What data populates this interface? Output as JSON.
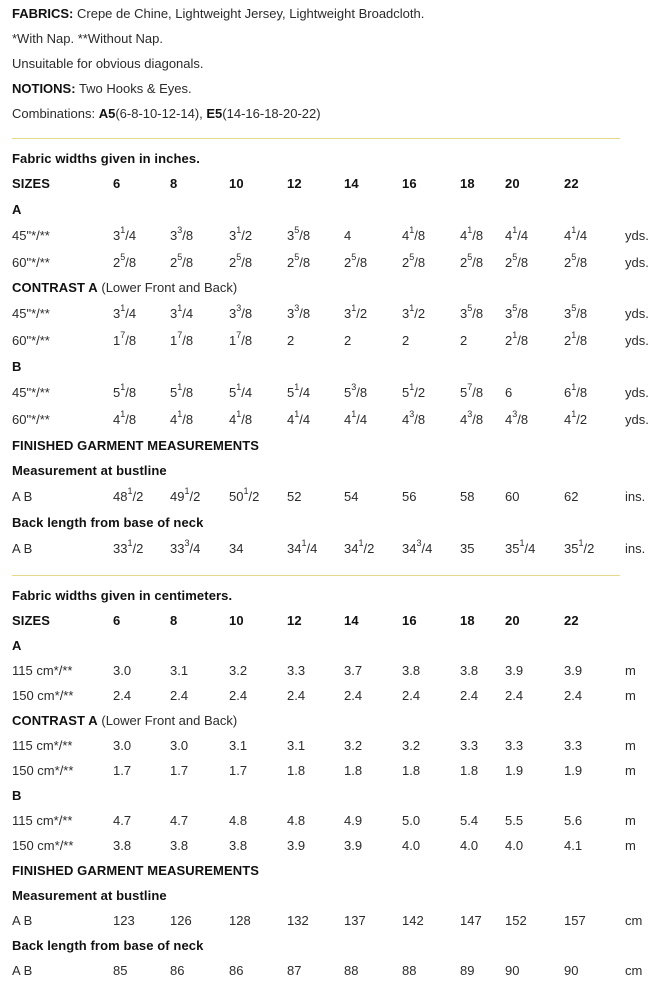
{
  "intro": {
    "fabrics_label": "FABRICS:",
    "fabrics_text": " Crepe de Chine, Lightweight Jersey, Lightweight Broadcloth.",
    "nap_text": "*With Nap. **Without Nap.",
    "diagonals_text": "Unsuitable for obvious diagonals.",
    "notions_label": "NOTIONS:",
    "notions_text": " Two Hooks & Eyes.",
    "combinations_label": "Combinations: ",
    "combo1_code": "A5",
    "combo1_sizes": "(6-8-10-12-14), ",
    "combo2_code": "E5",
    "combo2_sizes": "(14-16-18-20-22)"
  },
  "inches": {
    "caption": "Fabric widths given in inches.",
    "sizes_label": "SIZES",
    "sizes": [
      "6",
      "8",
      "10",
      "12",
      "14",
      "16",
      "18",
      "20",
      "22"
    ],
    "view_a_label": "A",
    "a_45": {
      "label": "45\"*/**",
      "values": [
        "3|1/4",
        "3|3/8",
        "3|1/2",
        "3|5/8",
        "4",
        "4|1/8",
        "4|1/8",
        "4|1/4",
        "4|1/4"
      ],
      "unit": "yds."
    },
    "a_60": {
      "label": "60\"*/**",
      "values": [
        "2|5/8",
        "2|5/8",
        "2|5/8",
        "2|5/8",
        "2|5/8",
        "2|5/8",
        "2|5/8",
        "2|5/8",
        "2|5/8"
      ],
      "unit": "yds."
    },
    "contrast_label": "CONTRAST A",
    "contrast_note": " (Lower Front and Back)",
    "c_45": {
      "label": "45\"*/**",
      "values": [
        "3|1/4",
        "3|1/4",
        "3|3/8",
        "3|3/8",
        "3|1/2",
        "3|1/2",
        "3|5/8",
        "3|5/8",
        "3|5/8"
      ],
      "unit": "yds."
    },
    "c_60": {
      "label": "60\"*/**",
      "values": [
        "1|7/8",
        "1|7/8",
        "1|7/8",
        "2",
        "2",
        "2",
        "2",
        "2|1/8",
        "2|1/8"
      ],
      "unit": "yds."
    },
    "view_b_label": "B",
    "b_45": {
      "label": "45\"*/**",
      "values": [
        "5|1/8",
        "5|1/8",
        "5|1/4",
        "5|1/4",
        "5|3/8",
        "5|1/2",
        "5|7/8",
        "6",
        "6|1/8"
      ],
      "unit": "yds."
    },
    "b_60": {
      "label": "60\"*/**",
      "values": [
        "4|1/8",
        "4|1/8",
        "4|1/8",
        "4|1/4",
        "4|1/4",
        "4|3/8",
        "4|3/8",
        "4|3/8",
        "4|1/2"
      ],
      "unit": "yds."
    },
    "finished_label": "FINISHED GARMENT MEASUREMENTS",
    "bust_label": "Measurement at bustline",
    "bust": {
      "label": "A B",
      "values": [
        "48|1/2",
        "49|1/2",
        "50|1/2",
        "52",
        "54",
        "56",
        "58",
        "60",
        "62"
      ],
      "unit": "ins."
    },
    "back_label": "Back length from base of neck",
    "back": {
      "label": "A B",
      "values": [
        "33|1/2",
        "33|3/4",
        "34",
        "34|1/4",
        "34|1/2",
        "34|3/4",
        "35",
        "35|1/4",
        "35|1/2"
      ],
      "unit": "ins."
    }
  },
  "cm": {
    "caption": "Fabric widths given in centimeters.",
    "sizes_label": "SIZES",
    "sizes": [
      "6",
      "8",
      "10",
      "12",
      "14",
      "16",
      "18",
      "20",
      "22"
    ],
    "view_a_label": "A",
    "a_115": {
      "label": "115 cm*/**",
      "values": [
        "3.0",
        "3.1",
        "3.2",
        "3.3",
        "3.7",
        "3.8",
        "3.8",
        "3.9",
        "3.9"
      ],
      "unit": "m"
    },
    "a_150": {
      "label": "150 cm*/**",
      "values": [
        "2.4",
        "2.4",
        "2.4",
        "2.4",
        "2.4",
        "2.4",
        "2.4",
        "2.4",
        "2.4"
      ],
      "unit": "m"
    },
    "contrast_label": "CONTRAST A",
    "contrast_note": " (Lower Front and Back)",
    "c_115": {
      "label": "115 cm*/**",
      "values": [
        "3.0",
        "3.0",
        "3.1",
        "3.1",
        "3.2",
        "3.2",
        "3.3",
        "3.3",
        "3.3"
      ],
      "unit": "m"
    },
    "c_150": {
      "label": "150 cm*/**",
      "values": [
        "1.7",
        "1.7",
        "1.7",
        "1.8",
        "1.8",
        "1.8",
        "1.8",
        "1.9",
        "1.9"
      ],
      "unit": "m"
    },
    "view_b_label": "B",
    "b_115": {
      "label": "115 cm*/**",
      "values": [
        "4.7",
        "4.7",
        "4.8",
        "4.8",
        "4.9",
        "5.0",
        "5.4",
        "5.5",
        "5.6"
      ],
      "unit": "m"
    },
    "b_150": {
      "label": "150 cm*/**",
      "values": [
        "3.8",
        "3.8",
        "3.8",
        "3.9",
        "3.9",
        "4.0",
        "4.0",
        "4.0",
        "4.1"
      ],
      "unit": "m"
    },
    "finished_label": "FINISHED GARMENT MEASUREMENTS",
    "bust_label": "Measurement at bustline",
    "bust": {
      "label": "A B",
      "values": [
        "123",
        "126",
        "128",
        "132",
        "137",
        "142",
        "147",
        "152",
        "157"
      ],
      "unit": "cm"
    },
    "back_label": "Back length from base of neck",
    "back": {
      "label": "A B",
      "values": [
        "85",
        "86",
        "86",
        "87",
        "88",
        "88",
        "89",
        "90",
        "90"
      ],
      "unit": "cm"
    }
  },
  "colors": {
    "divider": "#e8d98a",
    "text": "#2b2b2b",
    "heading": "#111111"
  }
}
